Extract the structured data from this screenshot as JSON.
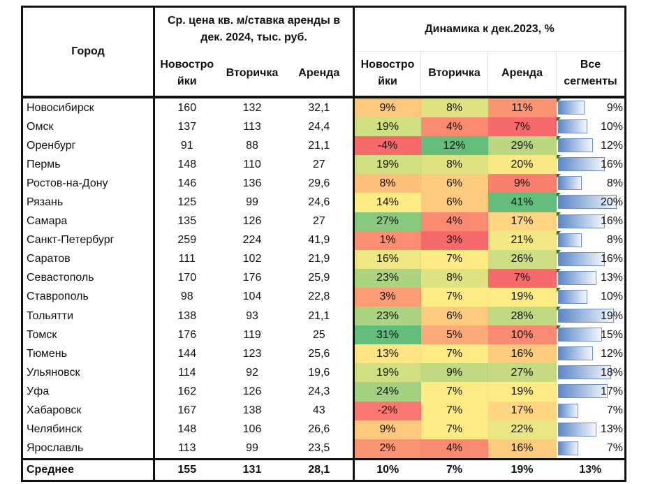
{
  "header": {
    "city": "Город",
    "price_group": "Ср. цена кв. м/ставка аренды в дек. 2024, тыс. руб.",
    "dynamics_group": "Динамика к дек.2023, %",
    "price_cols": [
      "Новостро йки",
      "Вторичка",
      "Аренда"
    ],
    "dyn_cols": [
      "Новостро йки",
      "Вторичка",
      "Аренда",
      "Все сегменты"
    ]
  },
  "colors": {
    "red": "#F8696B",
    "yellow": "#FFEB84",
    "green": "#63BE7B",
    "bar": "#5A86C8"
  },
  "rows": [
    {
      "city": "Новосибирск",
      "new": "160",
      "sec": "132",
      "rent": "32,1",
      "d_new": 9,
      "d_sec": 8,
      "d_rent": 11,
      "d_all": 9
    },
    {
      "city": "Омск",
      "new": "137",
      "sec": "113",
      "rent": "24,4",
      "d_new": 19,
      "d_sec": 4,
      "d_rent": 7,
      "d_all": 10
    },
    {
      "city": "Оренбург",
      "new": "91",
      "sec": "88",
      "rent": "21,1",
      "d_new": -4,
      "d_sec": 12,
      "d_rent": 29,
      "d_all": 12
    },
    {
      "city": "Пермь",
      "new": "148",
      "sec": "110",
      "rent": "27",
      "d_new": 19,
      "d_sec": 8,
      "d_rent": 20,
      "d_all": 16
    },
    {
      "city": "Ростов-на-Дону",
      "new": "146",
      "sec": "136",
      "rent": "29,6",
      "d_new": 8,
      "d_sec": 6,
      "d_rent": 9,
      "d_all": 8
    },
    {
      "city": "Рязань",
      "new": "125",
      "sec": "99",
      "rent": "24,6",
      "d_new": 14,
      "d_sec": 6,
      "d_rent": 41,
      "d_all": 20
    },
    {
      "city": "Самара",
      "new": "135",
      "sec": "126",
      "rent": "27",
      "d_new": 27,
      "d_sec": 4,
      "d_rent": 17,
      "d_all": 16
    },
    {
      "city": "Санкт-Петербург",
      "new": "259",
      "sec": "224",
      "rent": "41,9",
      "d_new": 1,
      "d_sec": 3,
      "d_rent": 21,
      "d_all": 8
    },
    {
      "city": "Саратов",
      "new": "111",
      "sec": "102",
      "rent": "21,9",
      "d_new": 16,
      "d_sec": 7,
      "d_rent": 26,
      "d_all": 16
    },
    {
      "city": "Севастополь",
      "new": "170",
      "sec": "176",
      "rent": "25,9",
      "d_new": 23,
      "d_sec": 8,
      "d_rent": 7,
      "d_all": 13
    },
    {
      "city": "Ставрополь",
      "new": "98",
      "sec": "104",
      "rent": "22,8",
      "d_new": 3,
      "d_sec": 7,
      "d_rent": 19,
      "d_all": 10
    },
    {
      "city": "Тольятти",
      "new": "138",
      "sec": "93",
      "rent": "21,1",
      "d_new": 23,
      "d_sec": 6,
      "d_rent": 28,
      "d_all": 19
    },
    {
      "city": "Томск",
      "new": "176",
      "sec": "119",
      "rent": "25",
      "d_new": 31,
      "d_sec": 5,
      "d_rent": 10,
      "d_all": 15
    },
    {
      "city": "Тюмень",
      "new": "144",
      "sec": "123",
      "rent": "25,6",
      "d_new": 13,
      "d_sec": 7,
      "d_rent": 16,
      "d_all": 12
    },
    {
      "city": "Ульяновск",
      "new": "114",
      "sec": "92",
      "rent": "19,6",
      "d_new": 19,
      "d_sec": 9,
      "d_rent": 27,
      "d_all": 18
    },
    {
      "city": "Уфа",
      "new": "162",
      "sec": "126",
      "rent": "24,3",
      "d_new": 24,
      "d_sec": 7,
      "d_rent": 19,
      "d_all": 17
    },
    {
      "city": "Хабаровск",
      "new": "167",
      "sec": "138",
      "rent": "43",
      "d_new": -2,
      "d_sec": 7,
      "d_rent": 17,
      "d_all": 7
    },
    {
      "city": "Челябинск",
      "new": "148",
      "sec": "106",
      "rent": "26,6",
      "d_new": 9,
      "d_sec": 7,
      "d_rent": 22,
      "d_all": 13
    },
    {
      "city": "Ярославль",
      "new": "113",
      "sec": "99",
      "rent": "23,5",
      "d_new": 2,
      "d_sec": 4,
      "d_rent": 16,
      "d_all": 7
    }
  ],
  "average": {
    "label": "Среднее",
    "new": "155",
    "sec": "131",
    "rent": "28,1",
    "d_new": "10%",
    "d_sec": "7%",
    "d_rent": "19%",
    "d_all": "13%"
  }
}
